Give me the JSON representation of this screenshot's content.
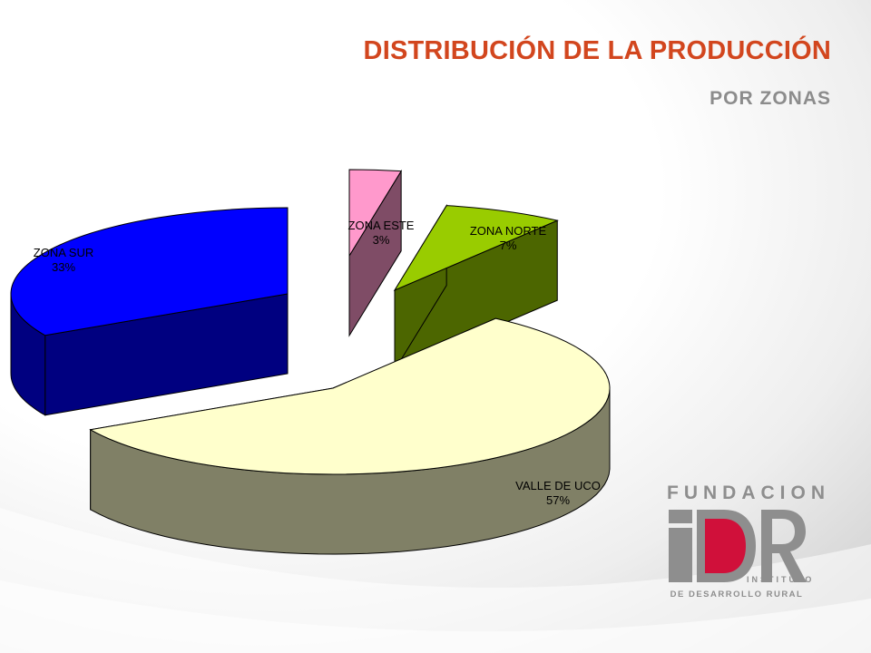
{
  "slide": {
    "title": "DISTRIBUCIÓN DE LA PRODUCCIÓN",
    "subtitle": "POR ZONAS"
  },
  "chart_data": {
    "type": "pie",
    "style": "3d-exploded",
    "slices": [
      {
        "label": "ZONA SUR",
        "value": 33,
        "value_label": "33%",
        "color_top": "#0000ff",
        "color_side": "#000080"
      },
      {
        "label": "ZONA ESTE",
        "value": 3,
        "value_label": "3%",
        "color_top": "#ff99cc",
        "color_side": "#7f4c66"
      },
      {
        "label": "ZONA NORTE",
        "value": 7,
        "value_label": "7%",
        "color_top": "#99cc00",
        "color_side": "#4c6600"
      },
      {
        "label": "VALLE DE UCO",
        "value": 57,
        "value_label": "57%",
        "color_top": "#ffffcc",
        "color_side": "#808066"
      }
    ]
  },
  "logo": {
    "top_text": "FUNDACION",
    "mark": "iDR",
    "line1": "INSTITUTO",
    "line2": "DE DESARROLLO RURAL",
    "accent": "#d0103a",
    "gray": "#8e8e8e"
  }
}
